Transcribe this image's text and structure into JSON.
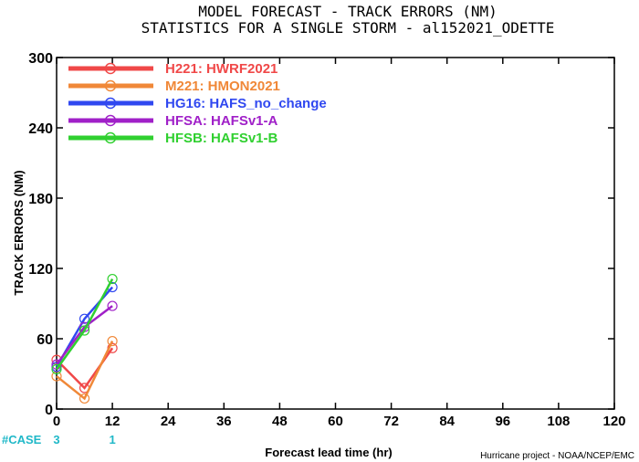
{
  "chart_data": {
    "type": "line",
    "title": "MODEL FORECAST - TRACK ERRORS (NM)",
    "subtitle": "STATISTICS FOR A SINGLE STORM - al152021_ODETTE",
    "xlabel": "Forecast lead time (hr)",
    "ylabel": "TRACK ERRORS (NM)",
    "xlim": [
      0,
      120
    ],
    "ylim": [
      0,
      300
    ],
    "xticks": [
      0,
      12,
      24,
      36,
      48,
      60,
      72,
      84,
      96,
      108,
      120
    ],
    "yticks": [
      0,
      60,
      120,
      180,
      240,
      300
    ],
    "grid": false,
    "legend_position": "top-left",
    "x": [
      0,
      6,
      12
    ],
    "series": [
      {
        "name": "H221: HWRF2021",
        "color": "#f04848",
        "values": [
          42,
          18,
          52
        ]
      },
      {
        "name": "M221: HMON2021",
        "color": "#f08838",
        "values": [
          28,
          9,
          58
        ]
      },
      {
        "name": "HG16: HAFS_no_change",
        "color": "#3048f0",
        "values": [
          36,
          77,
          104
        ]
      },
      {
        "name": "HFSA: HAFSv1-A",
        "color": "#a020c8",
        "values": [
          38,
          70,
          88
        ]
      },
      {
        "name": "HFSB: HAFSv1-B",
        "color": "#30d030",
        "values": [
          34,
          67,
          111
        ]
      }
    ],
    "cases": {
      "label": "#CASE",
      "values": [
        {
          "x": 0,
          "count": "3"
        },
        {
          "x": 12,
          "count": "1"
        }
      ]
    }
  },
  "credit": "Hurricane project - NOAA/NCEP/EMC"
}
